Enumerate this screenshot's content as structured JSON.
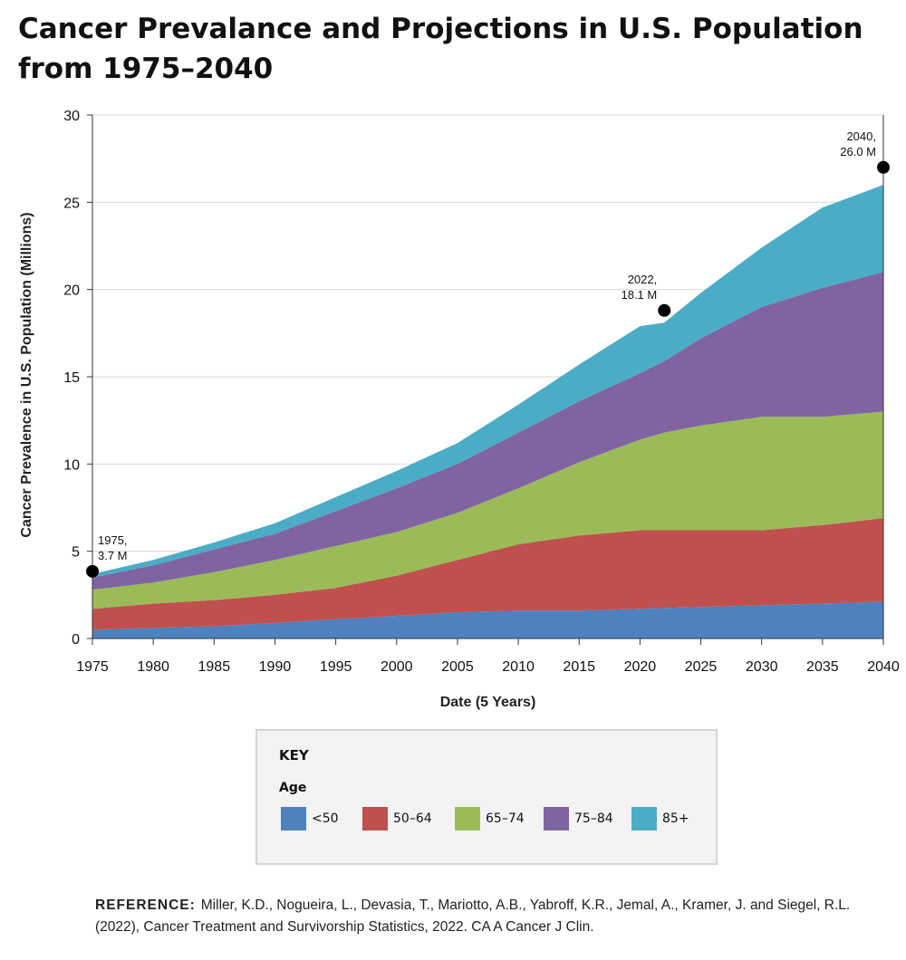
{
  "title": "Cancer Prevalance and Projections in U.S. Population from 1975–2040",
  "chart_data": {
    "type": "area",
    "stacked": true,
    "x": [
      1975,
      1980,
      1985,
      1990,
      1995,
      2000,
      2005,
      2010,
      2015,
      2020,
      2022,
      2025,
      2030,
      2035,
      2040
    ],
    "series": [
      {
        "name": "<50",
        "color": "#4e81bd",
        "values": [
          0.5,
          0.6,
          0.7,
          0.9,
          1.1,
          1.3,
          1.5,
          1.6,
          1.6,
          1.7,
          1.75,
          1.8,
          1.9,
          2.0,
          2.1
        ]
      },
      {
        "name": "50–64",
        "color": "#c0504d",
        "values": [
          1.2,
          1.4,
          1.5,
          1.6,
          1.8,
          2.3,
          3.0,
          3.8,
          4.3,
          4.5,
          4.45,
          4.4,
          4.3,
          4.5,
          4.8
        ]
      },
      {
        "name": "65–74",
        "color": "#9bbb59",
        "values": [
          1.1,
          1.2,
          1.6,
          2.0,
          2.4,
          2.5,
          2.7,
          3.2,
          4.2,
          5.2,
          5.6,
          6.0,
          6.5,
          6.2,
          6.1
        ]
      },
      {
        "name": "75–84",
        "color": "#8064a2",
        "values": [
          0.7,
          1.0,
          1.3,
          1.5,
          2.0,
          2.5,
          2.8,
          3.2,
          3.5,
          3.8,
          4.1,
          5.0,
          6.3,
          7.4,
          8.0
        ]
      },
      {
        "name": "85+",
        "color": "#4bacc6",
        "values": [
          0.2,
          0.3,
          0.4,
          0.6,
          0.8,
          1.0,
          1.2,
          1.6,
          2.1,
          2.7,
          2.2,
          2.6,
          3.4,
          4.6,
          5.0
        ]
      }
    ],
    "xlabel": "Date (5 Years)",
    "ylabel": "Cancer Prevalence in U.S. Population (Millions)",
    "ylim": [
      0,
      30
    ],
    "xlim": [
      1975,
      2040
    ],
    "yticks": [
      0,
      5,
      10,
      15,
      20,
      25,
      30
    ],
    "xticks": [
      1975,
      1980,
      1985,
      1990,
      1995,
      2000,
      2005,
      2010,
      2015,
      2020,
      2025,
      2030,
      2035,
      2040
    ],
    "grid": "horizontal",
    "annotations": [
      {
        "x": 1975,
        "y": 3.85,
        "line1": "1975,",
        "line2": "3.7 M",
        "side": "right"
      },
      {
        "x": 2022,
        "y": 18.8,
        "line1": "2022,",
        "line2": "18.1 M",
        "side": "left"
      },
      {
        "x": 2040,
        "y": 27.0,
        "line1": "2040,",
        "line2": "26.0 M",
        "side": "left"
      }
    ]
  },
  "key": {
    "title": "KEY",
    "subtitle": "Age",
    "items": [
      {
        "label": "<50",
        "color": "#4e81bd"
      },
      {
        "label": "50–64",
        "color": "#c0504d"
      },
      {
        "label": "65–74",
        "color": "#9bbb59"
      },
      {
        "label": "75–84",
        "color": "#8064a2"
      },
      {
        "label": "85+",
        "color": "#4bacc6"
      }
    ]
  },
  "reference": {
    "heading": "REFERENCE:",
    "text": "Miller, K.D., Nogueira, L., Devasia, T., Mariotto, A.B., Yabroff, K.R., Jemal, A., Kramer, J. and Siegel, R.L. (2022), Cancer Treatment and Survivorship Statistics, 2022. CA A Cancer J Clin."
  }
}
